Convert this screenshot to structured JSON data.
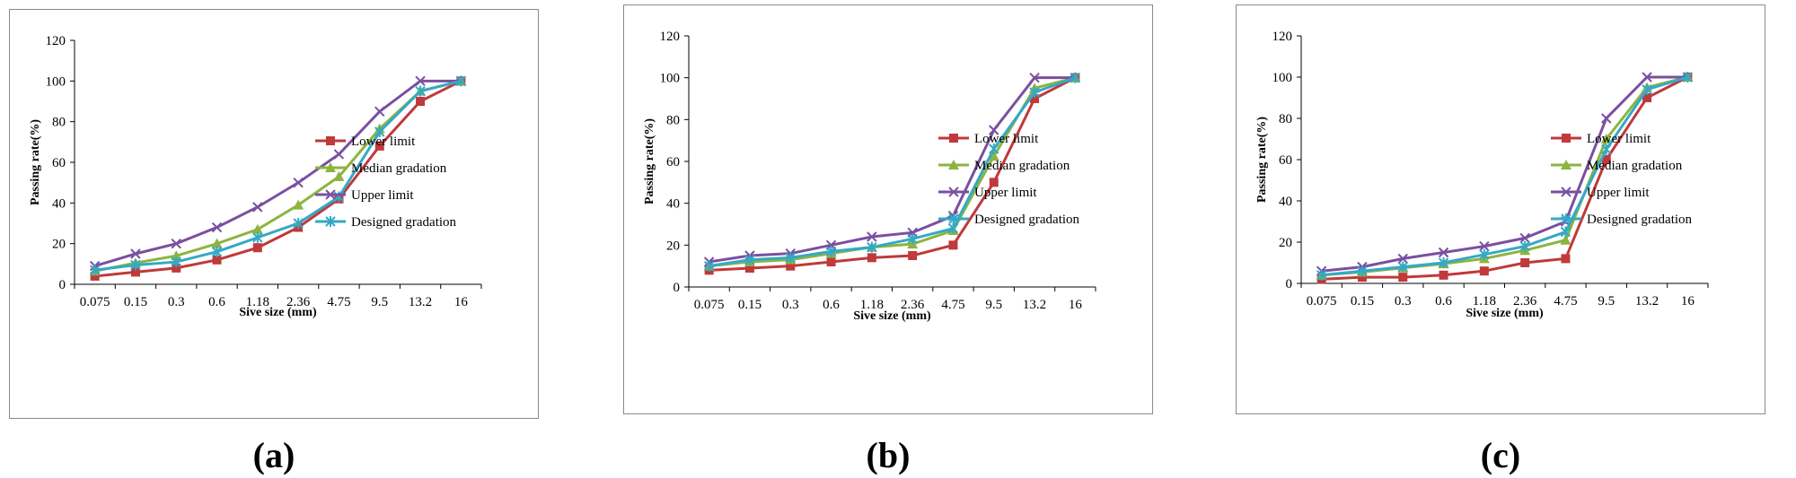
{
  "captions": [
    "(a)",
    "(b)",
    "(c)"
  ],
  "colors": {
    "lower": "#c0393b",
    "median": "#8db43f",
    "upper": "#7a4fa0",
    "designed": "#34a9c6"
  },
  "chart_data": [
    {
      "type": "line",
      "xlabel": "Sive size (mm)",
      "ylabel": "Passing rate(%)",
      "ylim": [
        0,
        120
      ],
      "yticks": [
        0,
        20,
        40,
        60,
        80,
        100,
        120
      ],
      "categories": [
        "0.075",
        "0.15",
        "0.3",
        "0.6",
        "1.18",
        "2.36",
        "4.75",
        "9.5",
        "13.2",
        "16"
      ],
      "legend_position": "right",
      "series": [
        {
          "name": "Lower limit",
          "key": "lower",
          "marker": "square",
          "values": [
            4,
            6,
            8,
            12,
            18,
            28,
            42,
            68,
            90,
            100
          ]
        },
        {
          "name": "Median gradation",
          "key": "median",
          "marker": "triangle",
          "values": [
            6.5,
            10.5,
            14,
            20,
            27,
            39,
            53,
            76.5,
            95,
            100
          ]
        },
        {
          "name": "Upper limit",
          "key": "upper",
          "marker": "x",
          "values": [
            9,
            15,
            20,
            28,
            38,
            50,
            64,
            85,
            100,
            100
          ]
        },
        {
          "name": "Designed gradation",
          "key": "designed",
          "marker": "star",
          "values": [
            7,
            9.5,
            11,
            16,
            23,
            30,
            43,
            75,
            95,
            100
          ]
        }
      ]
    },
    {
      "type": "line",
      "xlabel": "Sive size (mm)",
      "ylabel": "Passing rate(%)",
      "ylim": [
        0,
        120
      ],
      "yticks": [
        0,
        20,
        40,
        60,
        80,
        100,
        120
      ],
      "categories": [
        "0.075",
        "0.15",
        "0.3",
        "0.6",
        "1.18",
        "2.36",
        "4.75",
        "9.5",
        "13.2",
        "16"
      ],
      "legend_position": "right",
      "series": [
        {
          "name": "Lower limit",
          "key": "lower",
          "marker": "square",
          "values": [
            8,
            9,
            10,
            12,
            14,
            15,
            20,
            50,
            90,
            100
          ]
        },
        {
          "name": "Median gradation",
          "key": "median",
          "marker": "triangle",
          "values": [
            10,
            12,
            13,
            16,
            19,
            20.5,
            27,
            62.5,
            95,
            100
          ]
        },
        {
          "name": "Upper limit",
          "key": "upper",
          "marker": "x",
          "values": [
            12,
            15,
            16,
            20,
            24,
            26,
            34,
            75,
            100,
            100
          ]
        },
        {
          "name": "Designed gradation",
          "key": "designed",
          "marker": "star",
          "values": [
            10,
            13,
            14,
            17,
            19,
            23,
            28,
            66,
            93,
            100
          ]
        }
      ]
    },
    {
      "type": "line",
      "xlabel": "Sive size (mm)",
      "ylabel": "Passing rate(%)",
      "ylim": [
        0,
        120
      ],
      "yticks": [
        0,
        20,
        40,
        60,
        80,
        100,
        120
      ],
      "categories": [
        "0.075",
        "0.15",
        "0.3",
        "0.6",
        "1.18",
        "2.36",
        "4.75",
        "9.5",
        "13.2",
        "16"
      ],
      "legend_position": "right",
      "series": [
        {
          "name": "Lower limit",
          "key": "lower",
          "marker": "square",
          "values": [
            2,
            3,
            3,
            4,
            6,
            10,
            12,
            60,
            90,
            100
          ]
        },
        {
          "name": "Median gradation",
          "key": "median",
          "marker": "triangle",
          "values": [
            4,
            5.5,
            7.5,
            9.5,
            12,
            16,
            21,
            70,
            95,
            100
          ]
        },
        {
          "name": "Upper limit",
          "key": "upper",
          "marker": "x",
          "values": [
            6,
            8,
            12,
            15,
            18,
            22,
            30,
            80,
            100,
            100
          ]
        },
        {
          "name": "Designed gradation",
          "key": "designed",
          "marker": "star",
          "values": [
            4,
            6,
            8,
            10,
            14,
            18,
            25,
            65,
            94,
            100
          ]
        }
      ]
    }
  ]
}
